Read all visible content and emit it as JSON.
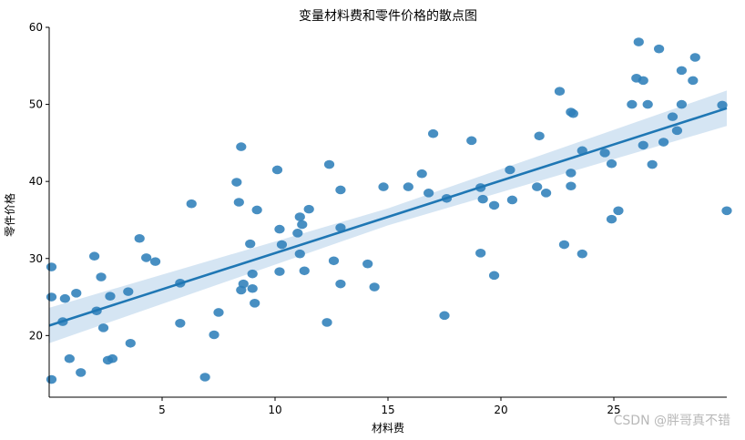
{
  "chart_data": {
    "type": "scatter",
    "title": "变量材料费和零件价格的散点图",
    "xlabel": "材料费",
    "ylabel": "零件价格",
    "xlim": [
      0,
      30
    ],
    "ylim": [
      12,
      60
    ],
    "xticks": [
      5,
      10,
      15,
      20,
      25
    ],
    "yticks": [
      20,
      30,
      40,
      50,
      60
    ],
    "grid": false,
    "regression": {
      "intercept": 21.3,
      "slope": 0.94,
      "ci_half_width": [
        2.3,
        1.1,
        2.3
      ]
    },
    "colors": {
      "points": "#2f7fba",
      "line": "#1f77b4",
      "band": "#c7dcef"
    },
    "points": [
      [
        0.1,
        14.3
      ],
      [
        0.1,
        25.0
      ],
      [
        0.1,
        28.9
      ],
      [
        0.6,
        21.8
      ],
      [
        0.7,
        24.8
      ],
      [
        0.9,
        17.0
      ],
      [
        1.2,
        25.5
      ],
      [
        1.4,
        15.2
      ],
      [
        2.0,
        30.3
      ],
      [
        2.1,
        23.2
      ],
      [
        2.3,
        27.6
      ],
      [
        2.4,
        21.0
      ],
      [
        2.6,
        16.8
      ],
      [
        2.7,
        25.1
      ],
      [
        2.8,
        17.0
      ],
      [
        3.5,
        25.7
      ],
      [
        3.6,
        19.0
      ],
      [
        4.0,
        32.6
      ],
      [
        4.3,
        30.1
      ],
      [
        4.7,
        29.6
      ],
      [
        5.8,
        26.8
      ],
      [
        5.8,
        21.6
      ],
      [
        6.3,
        37.1
      ],
      [
        6.9,
        14.6
      ],
      [
        7.3,
        20.1
      ],
      [
        7.5,
        23.0
      ],
      [
        8.3,
        39.9
      ],
      [
        8.4,
        37.3
      ],
      [
        8.5,
        44.5
      ],
      [
        8.5,
        25.9
      ],
      [
        8.6,
        26.7
      ],
      [
        8.9,
        31.9
      ],
      [
        9.0,
        26.1
      ],
      [
        9.0,
        28.0
      ],
      [
        9.1,
        24.2
      ],
      [
        9.2,
        36.3
      ],
      [
        10.1,
        41.5
      ],
      [
        10.2,
        33.8
      ],
      [
        10.2,
        28.3
      ],
      [
        10.3,
        31.8
      ],
      [
        11.0,
        33.3
      ],
      [
        11.1,
        35.4
      ],
      [
        11.1,
        30.6
      ],
      [
        11.2,
        34.4
      ],
      [
        11.3,
        28.4
      ],
      [
        11.5,
        36.4
      ],
      [
        12.3,
        21.7
      ],
      [
        12.4,
        42.2
      ],
      [
        12.6,
        29.7
      ],
      [
        12.9,
        38.9
      ],
      [
        12.9,
        34.0
      ],
      [
        12.9,
        26.7
      ],
      [
        14.1,
        29.3
      ],
      [
        14.4,
        26.3
      ],
      [
        14.8,
        39.3
      ],
      [
        15.9,
        39.3
      ],
      [
        16.5,
        41.0
      ],
      [
        16.8,
        38.5
      ],
      [
        17.0,
        46.2
      ],
      [
        17.5,
        22.6
      ],
      [
        17.6,
        37.8
      ],
      [
        18.7,
        45.3
      ],
      [
        19.1,
        39.2
      ],
      [
        19.2,
        37.7
      ],
      [
        19.1,
        30.7
      ],
      [
        19.7,
        36.9
      ],
      [
        19.7,
        27.8
      ],
      [
        20.4,
        41.5
      ],
      [
        20.5,
        37.6
      ],
      [
        21.6,
        39.3
      ],
      [
        21.7,
        45.9
      ],
      [
        22.0,
        38.5
      ],
      [
        22.6,
        51.7
      ],
      [
        22.8,
        31.8
      ],
      [
        23.1,
        49.0
      ],
      [
        23.2,
        48.8
      ],
      [
        23.1,
        41.1
      ],
      [
        23.1,
        39.4
      ],
      [
        23.6,
        44.0
      ],
      [
        23.6,
        30.6
      ],
      [
        24.6,
        43.7
      ],
      [
        24.9,
        35.1
      ],
      [
        24.9,
        42.3
      ],
      [
        25.2,
        36.2
      ],
      [
        25.8,
        50.0
      ],
      [
        26.0,
        53.4
      ],
      [
        26.1,
        58.1
      ],
      [
        26.3,
        53.1
      ],
      [
        26.3,
        44.7
      ],
      [
        26.5,
        50.0
      ],
      [
        26.7,
        42.2
      ],
      [
        27.0,
        57.2
      ],
      [
        27.2,
        45.1
      ],
      [
        27.6,
        48.4
      ],
      [
        27.8,
        46.6
      ],
      [
        28.0,
        54.4
      ],
      [
        28.0,
        50.0
      ],
      [
        28.5,
        53.1
      ],
      [
        28.6,
        56.1
      ],
      [
        29.8,
        49.9
      ],
      [
        30.0,
        36.2
      ]
    ]
  },
  "watermark": "CSDN @胖哥真不错"
}
